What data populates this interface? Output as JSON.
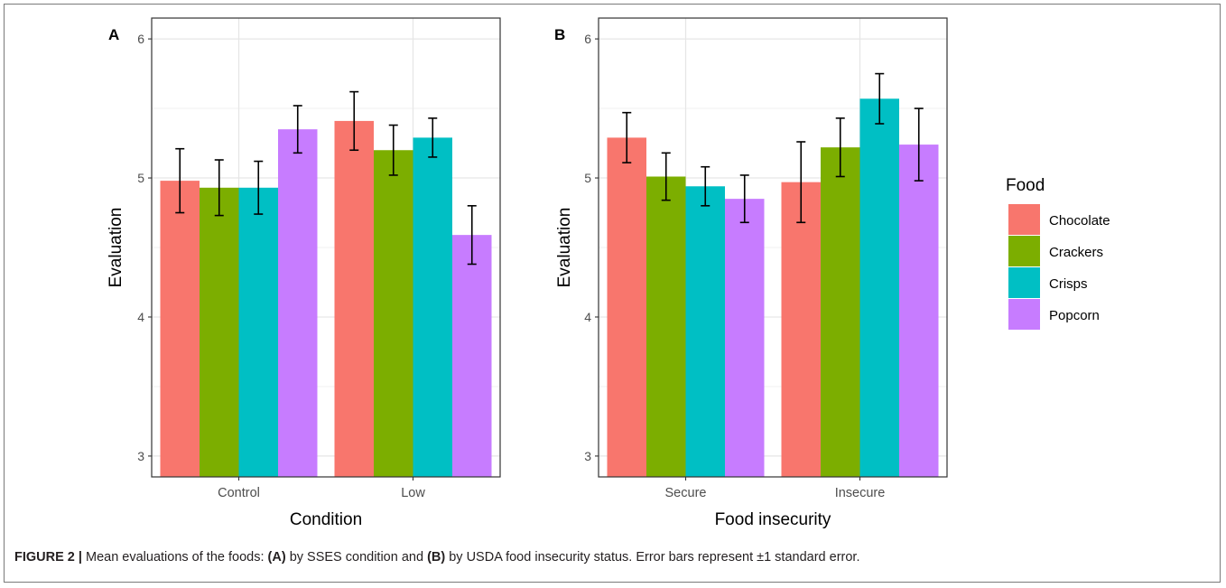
{
  "colors": {
    "food": [
      "#F8766D",
      "#7CAE00",
      "#00BFC4",
      "#C77CFF"
    ],
    "grid": "#e6e6e6",
    "axis": "#333333",
    "error_bar": "#000000"
  },
  "chart_data": [
    {
      "type": "bar",
      "panel_label": "A",
      "xlabel": "Condition",
      "ylabel": "Evaluation",
      "ylim": [
        2.85,
        6.15
      ],
      "yticks": [
        "3",
        "4",
        "5",
        "6"
      ],
      "categories": [
        "Control",
        "Low"
      ],
      "grid": true,
      "series": [
        {
          "name": "Chocolate",
          "values": [
            4.98,
            5.41
          ],
          "se": [
            0.23,
            0.21
          ]
        },
        {
          "name": "Crackers",
          "values": [
            4.93,
            5.2
          ],
          "se": [
            0.2,
            0.18
          ]
        },
        {
          "name": "Crisps",
          "values": [
            4.93,
            5.29
          ],
          "se": [
            0.19,
            0.14
          ]
        },
        {
          "name": "Popcorn",
          "values": [
            5.35,
            4.59
          ],
          "se": [
            0.17,
            0.21
          ]
        }
      ]
    },
    {
      "type": "bar",
      "panel_label": "B",
      "xlabel": "Food insecurity",
      "ylabel": "Evaluation",
      "ylim": [
        2.85,
        6.15
      ],
      "yticks": [
        "3",
        "4",
        "5",
        "6"
      ],
      "categories": [
        "Secure",
        "Insecure"
      ],
      "grid": true,
      "series": [
        {
          "name": "Chocolate",
          "values": [
            5.29,
            4.97
          ],
          "se": [
            0.18,
            0.29
          ]
        },
        {
          "name": "Crackers",
          "values": [
            5.01,
            5.22
          ],
          "se": [
            0.17,
            0.21
          ]
        },
        {
          "name": "Crisps",
          "values": [
            4.94,
            5.57
          ],
          "se": [
            0.14,
            0.18
          ]
        },
        {
          "name": "Popcorn",
          "values": [
            4.85,
            5.24
          ],
          "se": [
            0.17,
            0.26
          ]
        }
      ]
    }
  ],
  "legend": {
    "title": "Food",
    "placement": "right",
    "items": [
      "Chocolate",
      "Crackers",
      "Crisps",
      "Popcorn"
    ]
  },
  "caption": {
    "figure_label": "FIGURE 2",
    "separator": "|",
    "text_1": "Mean evaluations of the foods:",
    "label_a": "(A)",
    "text_2": "by SSES condition and",
    "label_b": "(B)",
    "text_3": "by USDA food insecurity status. Error bars represent ±1 standard error."
  }
}
